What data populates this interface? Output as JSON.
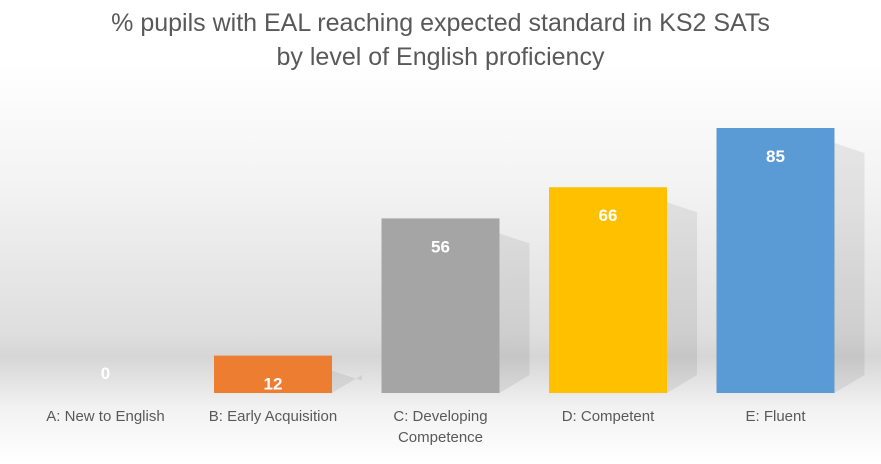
{
  "chart_data": {
    "type": "bar",
    "title_lines": [
      "% pupils with EAL reaching expected standard in KS2 SATs",
      "by level of English proficiency"
    ],
    "categories": [
      "A: New to English",
      "B: Early Acquisition",
      "C: Developing Competence",
      "D: Competent",
      "E: Fluent"
    ],
    "category_lines": [
      [
        "A: New to English"
      ],
      [
        "B: Early Acquisition"
      ],
      [
        "C: Developing",
        "Competence"
      ],
      [
        "D: Competent"
      ],
      [
        "E: Fluent"
      ]
    ],
    "values": [
      0,
      12,
      56,
      66,
      85
    ],
    "data_labels": [
      "0",
      "12",
      "56",
      "66",
      "85"
    ],
    "colors": [
      "#4472C4",
      "#ED7D31",
      "#A5A5A5",
      "#FFC000",
      "#5B9BD5"
    ],
    "ylim": [
      0,
      100
    ],
    "grid": false,
    "legend": "none",
    "xlabel": "",
    "ylabel": ""
  }
}
